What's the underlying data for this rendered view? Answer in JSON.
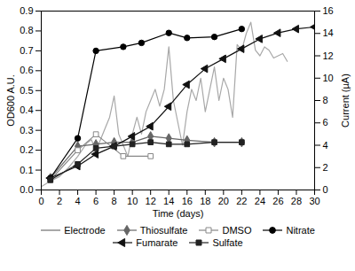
{
  "chart_data": {
    "type": "line",
    "x_label": "Time (days)",
    "y_label": "OD600 A.U.",
    "y2_label": "Current (µA)",
    "xlim": [
      0,
      30
    ],
    "xticks": [
      0,
      2,
      4,
      6,
      8,
      10,
      12,
      14,
      16,
      18,
      20,
      22,
      24,
      26,
      28,
      30
    ],
    "ylim": [
      0,
      0.9
    ],
    "yticks": [
      {
        "value": 0,
        "label": "0.0"
      },
      0.1,
      0.2,
      0.3,
      0.4,
      0.5,
      0.6,
      0.7,
      0.8,
      0.9
    ],
    "y2lim": [
      0,
      16
    ],
    "y2ticks": [
      0,
      2,
      4,
      6,
      8,
      10,
      12,
      14,
      16
    ],
    "legend": "bottom",
    "series": [
      {
        "name": "Electrode",
        "color": "#a8a8a8",
        "marker": "none",
        "line_style": "solid",
        "axis": "y2",
        "x": [
          0,
          1,
          2,
          3,
          4,
          5,
          5.5,
          6,
          6.5,
          7,
          7.5,
          8,
          8.5,
          9,
          9.5,
          10,
          10.5,
          11,
          11.5,
          12,
          12.5,
          13,
          13.5,
          14,
          14.5,
          15,
          15.5,
          16,
          16.5,
          17,
          17.5,
          18,
          18.5,
          19,
          19.5,
          20,
          20.5,
          21,
          21.5,
          22,
          22.5,
          23,
          23.5,
          24,
          24.5,
          25,
          25.5,
          26,
          26.5,
          27
        ],
        "values": [
          0.3,
          0.8,
          1.2,
          2.0,
          3.0,
          4.2,
          4.5,
          3.5,
          4.5,
          5.5,
          6.5,
          8.4,
          5.0,
          4.0,
          3.0,
          5.0,
          6.5,
          5.0,
          7.0,
          8.0,
          9.0,
          7.5,
          9.0,
          12.8,
          8.0,
          6.0,
          4.0,
          7.0,
          9.0,
          8.0,
          10.0,
          7.0,
          9.0,
          11.0,
          8.0,
          10.0,
          9.0,
          6.5,
          13.0,
          12.5,
          14.0,
          15.0,
          12.5,
          12.0,
          12.8,
          12.5,
          11.8,
          12.0,
          12.2,
          11.5
        ]
      },
      {
        "name": "Thiosulfate",
        "color": "#666666",
        "marker": "diamond",
        "line_style": "solid",
        "x": [
          1,
          4,
          6,
          8,
          10,
          12,
          14,
          16,
          19,
          22
        ],
        "values": [
          0.06,
          0.22,
          0.23,
          0.24,
          0.24,
          0.27,
          0.26,
          0.25,
          0.24,
          0.24
        ]
      },
      {
        "name": "DMSO",
        "color": "#888888",
        "marker": "square-open",
        "line_style": "solid",
        "x": [
          1,
          4,
          6,
          9,
          12
        ],
        "values": [
          0.05,
          0.2,
          0.28,
          0.17,
          0.17
        ]
      },
      {
        "name": "Nitrate",
        "color": "#000000",
        "marker": "circle",
        "line_style": "solid",
        "x": [
          1,
          4,
          6,
          9,
          11,
          14,
          16,
          19,
          22
        ],
        "values": [
          0.06,
          0.26,
          0.7,
          0.72,
          0.74,
          0.79,
          0.765,
          0.77,
          0.81
        ]
      },
      {
        "name": "Fumarate",
        "color": "#111111",
        "marker": "triangle-left",
        "line_style": "solid",
        "x": [
          1,
          4,
          6,
          8,
          10,
          12,
          14,
          16,
          18,
          20,
          22,
          24,
          26,
          28,
          30
        ],
        "values": [
          0.06,
          0.12,
          0.18,
          0.22,
          0.27,
          0.32,
          0.42,
          0.53,
          0.61,
          0.66,
          0.71,
          0.76,
          0.79,
          0.81,
          0.82
        ]
      },
      {
        "name": "Sulfate",
        "color": "#222222",
        "marker": "square",
        "line_style": "solid",
        "x": [
          1,
          4,
          6,
          8,
          10,
          12,
          14,
          16,
          19,
          22
        ],
        "values": [
          0.05,
          0.13,
          0.21,
          0.22,
          0.23,
          0.24,
          0.23,
          0.23,
          0.24,
          0.24
        ]
      }
    ]
  }
}
